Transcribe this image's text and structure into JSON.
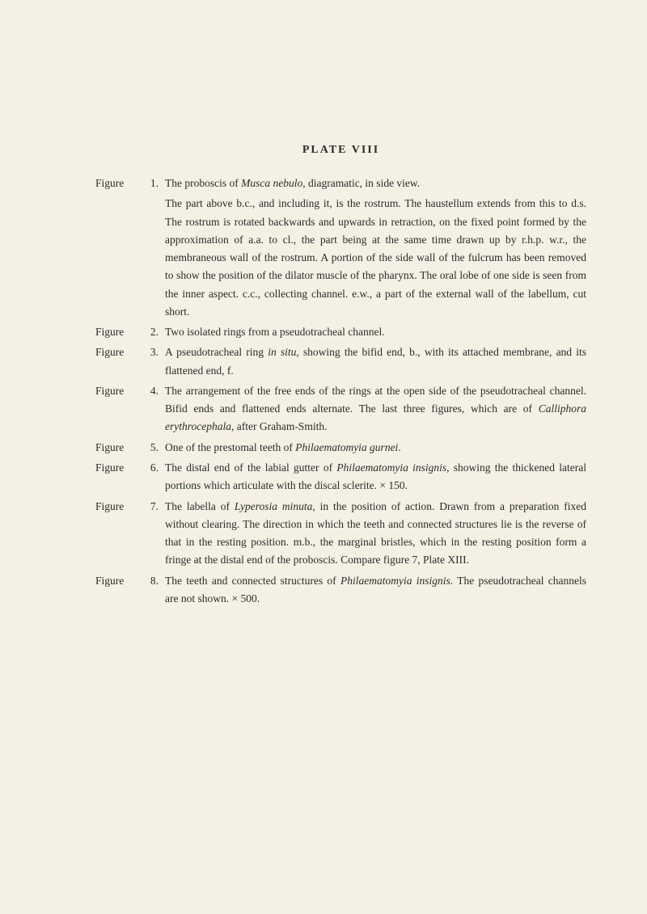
{
  "title": "PLATE VIII",
  "entries": [
    {
      "label": "Figure",
      "num": "1.",
      "descLines": [
        "The proboscis of <span class='italic'>Musca nebulo</span>, diagramatic, in side view.",
        "The part above b.c., and including it, is the rostrum. The haustellum extends from this to d.s. The rostrum is rotated backwards and upwards in retraction, on the fixed point formed by the approximation of a.a. to cl., the part being at the same time drawn up by r.h.p. w.r., the membraneous wall of the rostrum. A portion of the side wall of the fulcrum has been removed to show the position of the dilator muscle of the pharynx. The oral lobe of one side is seen from the inner aspect. c.c., collecting channel. e.w., a part of the external wall of the labellum, cut short."
      ]
    },
    {
      "label": "Figure",
      "num": "2.",
      "descLines": [
        "Two isolated rings from a pseudotracheal channel."
      ]
    },
    {
      "label": "Figure",
      "num": "3.",
      "descLines": [
        "A pseudotracheal ring <span class='italic'>in situ</span>, showing the bifid end, b., with its attached membrane, and its flattened end, f."
      ]
    },
    {
      "label": "Figure",
      "num": "4.",
      "descLines": [
        "The arrangement of the free ends of the rings at the open side of the pseudotracheal channel. Bifid ends and flattened ends alternate. The last three figures, which are of <span class='italic'>Calliphora erythrocephala</span>, after Graham-Smith."
      ]
    },
    {
      "label": "Figure",
      "num": "5.",
      "descLines": [
        "One of the prestomal teeth of <span class='italic'>Philaematomyia gurnei</span>."
      ]
    },
    {
      "label": "Figure",
      "num": "6.",
      "descLines": [
        "The distal end of the labial gutter of <span class='italic'>Philaematomyia insignis</span>, showing the thickened lateral portions which articulate with the discal sclerite. × 150."
      ]
    },
    {
      "label": "Figure",
      "num": "7.",
      "descLines": [
        "The labella of <span class='italic'>Lyperosia minuta</span>, in the position of action. Drawn from a preparation fixed without clearing. The direction in which the teeth and connected structures lie is the reverse of that in the resting position. m.b., the marginal bristles, which in the resting position form a fringe at the distal end of the proboscis. Compare figure 7, Plate XIII."
      ]
    },
    {
      "label": "Figure",
      "num": "8.",
      "descLines": [
        "The teeth and connected structures of <span class='italic'>Philaematomyia insignis</span>. The pseudotracheal channels are not shown. × 500."
      ]
    }
  ]
}
